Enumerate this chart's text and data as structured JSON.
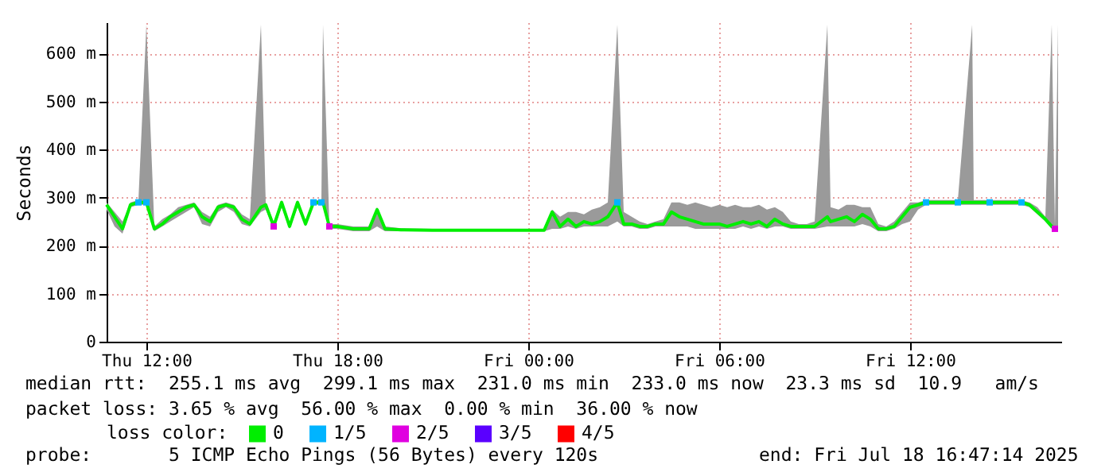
{
  "chart_data": {
    "type": "line",
    "ylabel": "Seconds",
    "xlim": [
      "2025-07-17T10:45",
      "2025-07-18T16:45"
    ],
    "xticks": [
      {
        "value": "2025-07-17T12:00",
        "label": "Thu 12:00"
      },
      {
        "value": "2025-07-17T18:00",
        "label": "Thu 18:00"
      },
      {
        "value": "2025-07-18T00:00",
        "label": "Fri 00:00"
      },
      {
        "value": "2025-07-18T06:00",
        "label": "Fri 06:00"
      },
      {
        "value": "2025-07-18T12:00",
        "label": "Fri 12:00"
      }
    ],
    "ylim": [
      0,
      665
    ],
    "yticks": [
      0,
      {
        "value": 100,
        "label": "100 m"
      },
      {
        "value": 200,
        "label": "200 m"
      },
      {
        "value": 300,
        "label": "300 m"
      },
      {
        "value": 400,
        "label": "400 m"
      },
      {
        "value": 500,
        "label": "500 m"
      },
      {
        "value": 600,
        "label": "600 m"
      }
    ],
    "grid": true,
    "legend": "bottom",
    "legend_title": "loss color:",
    "series": [
      {
        "name": "0",
        "color": "#00ee00",
        "x": [
          "2025-07-17T10:45",
          "2025-07-17T11:00",
          "2025-07-17T11:15",
          "2025-07-17T11:30",
          "2025-07-17T11:45",
          "2025-07-17T12:00",
          "2025-07-17T12:15",
          "2025-07-17T12:30",
          "2025-07-17T12:45",
          "2025-07-17T13:00",
          "2025-07-17T13:15",
          "2025-07-17T13:30",
          "2025-07-17T13:45",
          "2025-07-17T14:00",
          "2025-07-17T14:15",
          "2025-07-17T14:30",
          "2025-07-17T14:45",
          "2025-07-17T15:00",
          "2025-07-17T15:15",
          "2025-07-17T15:36",
          "2025-07-17T15:45",
          "2025-07-17T16:00",
          "2025-07-17T16:15",
          "2025-07-17T16:30",
          "2025-07-17T16:45",
          "2025-07-17T17:00",
          "2025-07-17T17:15",
          "2025-07-17T17:30",
          "2025-07-17T17:33",
          "2025-07-17T17:45",
          "2025-07-17T18:00",
          "2025-07-17T18:30",
          "2025-07-17T19:00",
          "2025-07-17T19:15",
          "2025-07-17T19:30",
          "2025-07-17T20:00",
          "2025-07-17T21:00",
          "2025-07-17T22:00",
          "2025-07-17T23:00",
          "2025-07-18T00:00",
          "2025-07-18T00:30",
          "2025-07-18T00:45",
          "2025-07-18T01:00",
          "2025-07-18T01:15",
          "2025-07-18T01:30",
          "2025-07-18T01:45",
          "2025-07-18T02:00",
          "2025-07-18T02:15",
          "2025-07-18T02:30",
          "2025-07-18T02:48",
          "2025-07-18T03:00",
          "2025-07-18T03:15",
          "2025-07-18T03:30",
          "2025-07-18T03:45",
          "2025-07-18T04:00",
          "2025-07-18T04:15",
          "2025-07-18T04:30",
          "2025-07-18T04:45",
          "2025-07-18T05:00",
          "2025-07-18T05:15",
          "2025-07-18T05:30",
          "2025-07-18T05:45",
          "2025-07-18T06:00",
          "2025-07-18T06:15",
          "2025-07-18T06:30",
          "2025-07-18T06:45",
          "2025-07-18T07:00",
          "2025-07-18T07:15",
          "2025-07-18T07:30",
          "2025-07-18T07:45",
          "2025-07-18T08:00",
          "2025-07-18T08:15",
          "2025-07-18T08:30",
          "2025-07-18T08:45",
          "2025-07-18T09:00",
          "2025-07-18T09:24",
          "2025-07-18T09:30",
          "2025-07-18T09:45",
          "2025-07-18T10:00",
          "2025-07-18T10:15",
          "2025-07-18T10:30",
          "2025-07-18T10:45",
          "2025-07-18T11:00",
          "2025-07-18T11:15",
          "2025-07-18T11:30",
          "2025-07-18T11:45",
          "2025-07-18T12:00",
          "2025-07-18T12:15",
          "2025-07-18T12:30",
          "2025-07-18T13:00",
          "2025-07-18T13:30",
          "2025-07-18T13:57",
          "2025-07-18T14:00",
          "2025-07-18T14:30",
          "2025-07-18T15:00",
          "2025-07-18T15:30",
          "2025-07-18T15:45",
          "2025-07-18T16:00",
          "2025-07-18T16:15",
          "2025-07-18T16:27",
          "2025-07-18T16:33",
          "2025-07-18T16:39"
        ],
        "values": [
          285,
          260,
          235,
          285,
          290,
          290,
          235,
          245,
          260,
          270,
          280,
          285,
          260,
          250,
          280,
          285,
          280,
          255,
          245,
          280,
          285,
          240,
          290,
          240,
          290,
          245,
          290,
          290,
          290,
          240,
          240,
          235,
          235,
          275,
          235,
          233,
          232,
          232,
          232,
          232,
          232,
          270,
          240,
          255,
          240,
          250,
          245,
          250,
          260,
          290,
          245,
          245,
          240,
          240,
          245,
          245,
          270,
          260,
          255,
          250,
          245,
          245,
          245,
          240,
          245,
          250,
          245,
          250,
          240,
          255,
          245,
          240,
          240,
          240,
          240,
          260,
          250,
          255,
          260,
          250,
          265,
          255,
          235,
          235,
          240,
          260,
          280,
          285,
          290,
          290,
          290,
          290,
          290,
          290,
          290,
          290,
          285,
          270,
          255,
          240,
          235,
          235
        ],
        "lower": [
          275,
          240,
          225,
          280,
          285,
          285,
          230,
          240,
          250,
          260,
          270,
          280,
          245,
          240,
          270,
          280,
          270,
          245,
          240,
          270,
          275,
          235,
          280,
          235,
          280,
          240,
          285,
          285,
          285,
          235,
          235,
          230,
          230,
          240,
          230,
          230,
          230,
          230,
          230,
          230,
          230,
          235,
          235,
          240,
          235,
          240,
          240,
          240,
          240,
          250,
          240,
          240,
          235,
          235,
          240,
          240,
          240,
          240,
          240,
          235,
          235,
          235,
          235,
          235,
          235,
          240,
          235,
          240,
          235,
          240,
          240,
          235,
          235,
          235,
          235,
          240,
          240,
          240,
          240,
          240,
          245,
          240,
          230,
          230,
          235,
          245,
          250,
          275,
          285,
          285,
          285,
          285,
          285,
          285,
          285,
          285,
          280,
          265,
          250,
          235,
          230,
          230
        ],
        "upper": [
          290,
          270,
          250,
          290,
          295,
          660,
          240,
          255,
          265,
          280,
          285,
          290,
          270,
          260,
          285,
          290,
          285,
          265,
          255,
          660,
          290,
          250,
          295,
          245,
          295,
          250,
          295,
          295,
          660,
          245,
          245,
          240,
          240,
          280,
          240,
          236,
          235,
          235,
          235,
          235,
          235,
          275,
          260,
          270,
          270,
          265,
          275,
          280,
          290,
          660,
          270,
          260,
          250,
          245,
          250,
          255,
          290,
          290,
          285,
          290,
          285,
          280,
          285,
          280,
          285,
          280,
          280,
          285,
          275,
          280,
          270,
          250,
          245,
          245,
          250,
          660,
          280,
          275,
          285,
          285,
          280,
          280,
          245,
          240,
          250,
          270,
          290,
          290,
          295,
          295,
          295,
          660,
          295,
          295,
          295,
          295,
          290,
          280,
          260,
          660,
          240,
          660
        ]
      },
      {
        "name": "1/5",
        "type": "scatter",
        "marker": "square",
        "color": "#00b4ff",
        "x": [
          "2025-07-17T11:45",
          "2025-07-17T12:00",
          "2025-07-17T17:15",
          "2025-07-17T17:30",
          "2025-07-18T02:48",
          "2025-07-18T12:30",
          "2025-07-18T13:30",
          "2025-07-18T14:30",
          "2025-07-18T15:30"
        ],
        "values": [
          290,
          290,
          290,
          290,
          290,
          290,
          290,
          290,
          290
        ]
      },
      {
        "name": "2/5",
        "type": "scatter",
        "marker": "square",
        "color": "#e000e0",
        "x": [
          "2025-07-17T16:00",
          "2025-07-17T17:45",
          "2025-07-18T16:33"
        ],
        "values": [
          240,
          240,
          235
        ]
      },
      {
        "name": "3/5",
        "type": "scatter",
        "marker": "square",
        "color": "#5a00ff"
      },
      {
        "name": "4/5",
        "type": "scatter",
        "marker": "square",
        "color": "#ff0000"
      }
    ],
    "annotations": [
      "median rtt:  255.1 ms avg  299.1 ms max  231.0 ms min  233.0 ms now  23.3 ms sd  10.9   am/s",
      "packet loss: 3.65 % avg  56.00 % max  0.00 % min  36.00 % now",
      "probe:       5 ICMP Echo Pings (56 Bytes) every 120s",
      "end: Fri Jul 18 16:47:14 2025"
    ]
  }
}
